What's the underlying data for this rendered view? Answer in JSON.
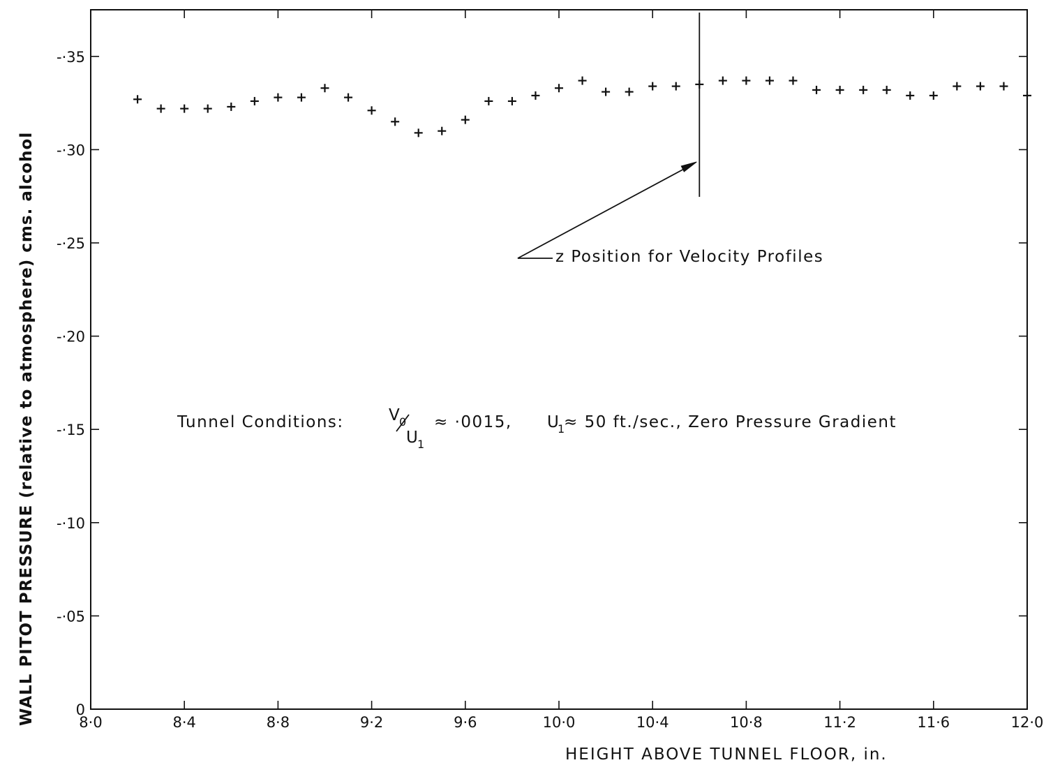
{
  "chart_data": {
    "type": "scatter",
    "xlabel": "HEIGHT ABOVE TUNNEL FLOOR, in.",
    "ylabel": "WALL PITOT PRESSURE (relative to atmosphere) cms. alcohol",
    "xlim": [
      8.0,
      12.0
    ],
    "ylim": [
      0,
      -0.375
    ],
    "x_ticks": [
      8.0,
      8.4,
      8.8,
      9.2,
      9.6,
      10.0,
      10.4,
      10.8,
      11.2,
      11.6,
      12.0
    ],
    "x_tick_labels": [
      "8·0",
      "8·4",
      "8·8",
      "9·2",
      "9·6",
      "10·0",
      "10·4",
      "10·8",
      "11·2",
      "11·6",
      "12·0"
    ],
    "y_ticks": [
      0,
      -0.05,
      -0.1,
      -0.15,
      -0.2,
      -0.25,
      -0.3,
      -0.35
    ],
    "y_tick_labels": [
      "0",
      "-·05",
      "-·10",
      "-·15",
      "-·20",
      "-·25",
      "-·30",
      "-·35"
    ],
    "grid": false,
    "series": [
      {
        "marker": "+",
        "x": [
          8.2,
          8.3,
          8.4,
          8.5,
          8.6,
          8.7,
          8.8,
          8.9,
          9.0,
          9.1,
          9.2,
          9.3,
          9.4,
          9.5,
          9.6,
          9.7,
          9.8,
          9.9,
          10.0,
          10.1,
          10.2,
          10.3,
          10.4,
          10.5,
          10.6,
          10.7,
          10.8,
          10.9,
          11.0,
          11.1,
          11.2,
          11.3,
          11.4,
          11.5,
          11.6,
          11.7,
          11.8,
          11.9,
          12.0
        ],
        "y": [
          -0.327,
          -0.322,
          -0.322,
          -0.322,
          -0.323,
          -0.326,
          -0.328,
          -0.328,
          -0.333,
          -0.328,
          -0.321,
          -0.315,
          -0.309,
          -0.31,
          -0.316,
          -0.326,
          -0.326,
          -0.329,
          -0.333,
          -0.337,
          -0.331,
          -0.331,
          -0.334,
          -0.334,
          -0.335,
          -0.337,
          -0.337,
          -0.337,
          -0.337,
          -0.332,
          -0.332,
          -0.332,
          -0.332,
          -0.329,
          -0.329,
          -0.334,
          -0.334,
          -0.334,
          -0.329
        ]
      }
    ],
    "annotations": {
      "position_marker": {
        "x": 10.6,
        "label": "z  Position for Velocity Profiles"
      },
      "conditions": {
        "prefix": "Tunnel Conditions:",
        "v_symbol": "V",
        "v_sub": "0",
        "u_symbol": "U",
        "u_sub": "1",
        "ratio_value": "≈  ·0015,",
        "u1_value": "≈ 50 ft./sec., Zero Pressure Gradient"
      }
    }
  }
}
